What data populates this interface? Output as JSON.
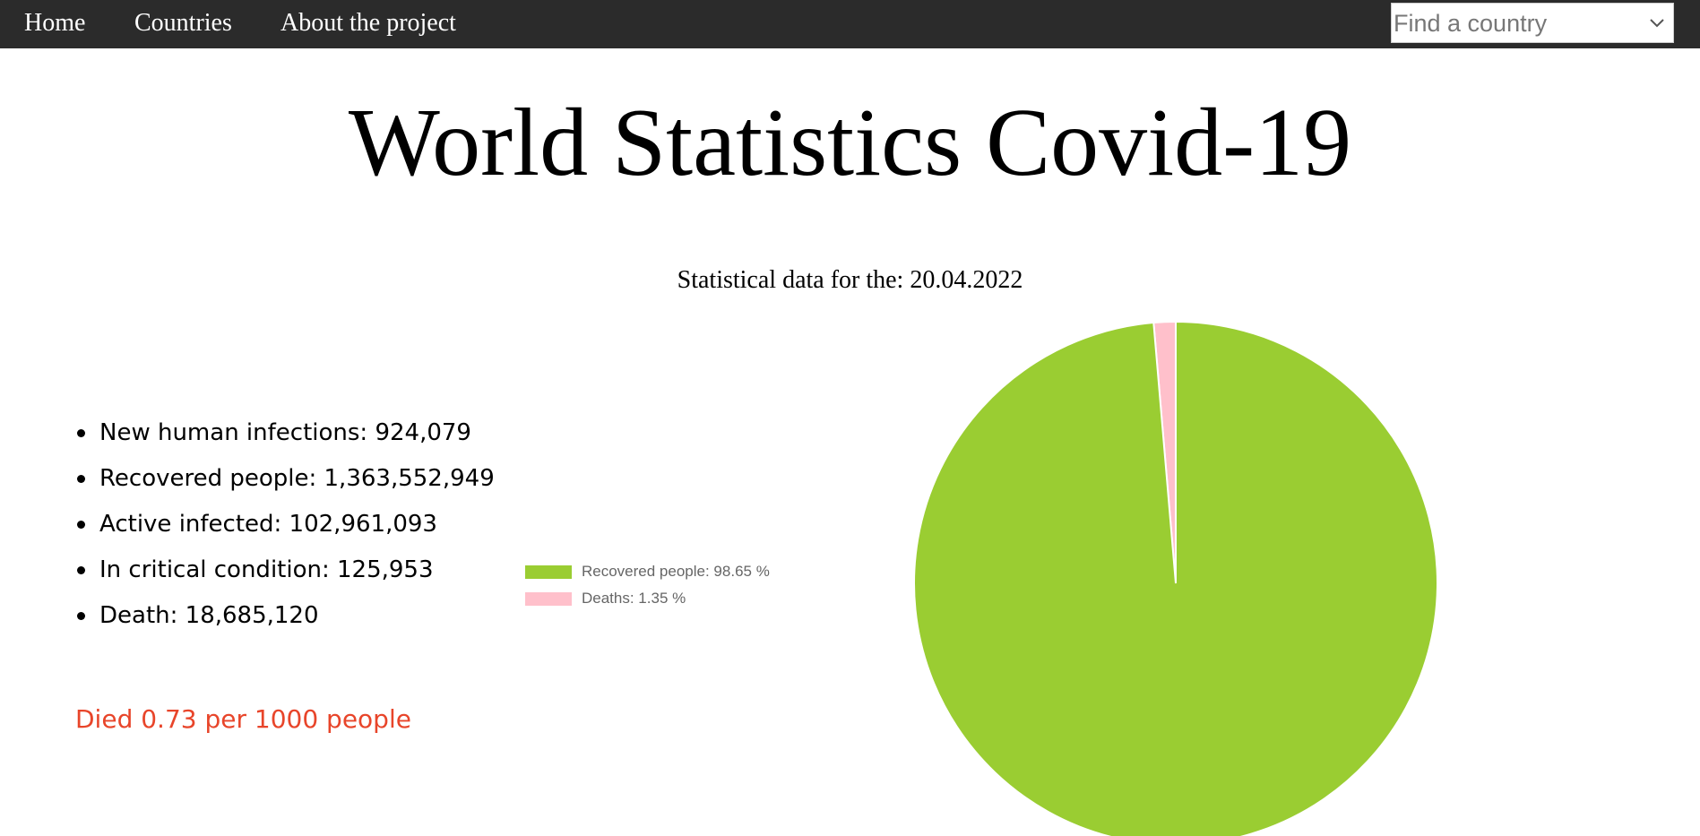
{
  "nav": {
    "home": "Home",
    "countries": "Countries",
    "about": "About the project"
  },
  "search": {
    "placeholder": "Find a country",
    "icon": "chevron-down-icon"
  },
  "page": {
    "title": "World Statistics Covid-19",
    "date_line": "Statistical data for the: 20.04.2022"
  },
  "stats": [
    {
      "label": "New human infections: 924,079"
    },
    {
      "label": "Recovered people: 1,363,552,949"
    },
    {
      "label": "Active infected: 102,961,093"
    },
    {
      "label": "In critical condition: 125,953"
    },
    {
      "label": "Death: 18,685,120"
    }
  ],
  "died_line": "Died 0.73 per 1000 people",
  "colors": {
    "navbar": "#2b2b2b",
    "died_text": "#e8452a",
    "recovered": "#9acd32",
    "deaths": "#ffc0cb"
  },
  "chart_data": {
    "type": "pie",
    "categories": [
      "Recovered people",
      "Deaths"
    ],
    "values": [
      98.65,
      1.35
    ],
    "legend_labels": [
      "Recovered people: 98.65 %",
      "Deaths: 1.35 %"
    ],
    "colors": [
      "#9acd32",
      "#ffc0cb"
    ],
    "legend_position": "left"
  }
}
